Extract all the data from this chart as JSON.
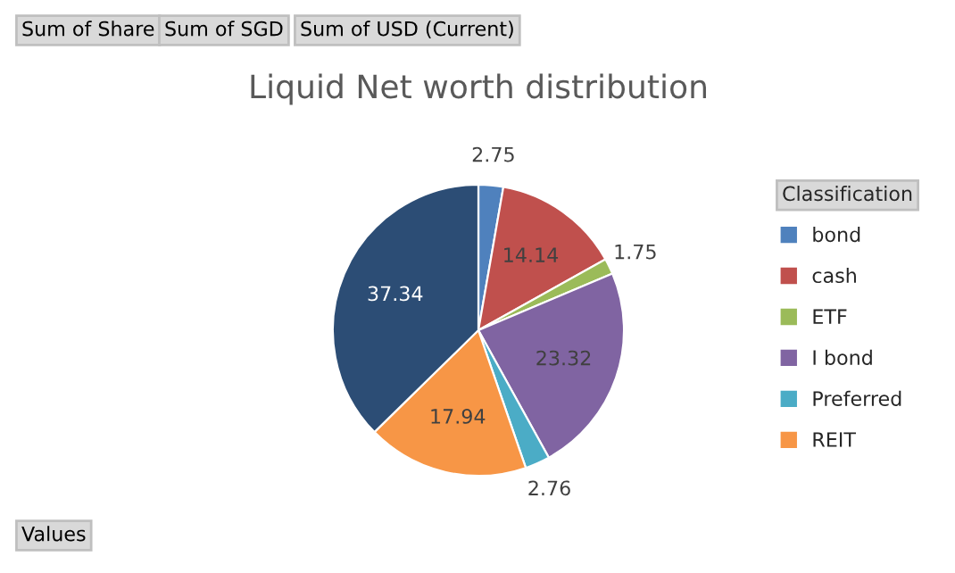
{
  "chart_data": {
    "type": "pie",
    "title": "Liquid Net worth distribution",
    "legend_title": "Classification",
    "legend": "right",
    "categories": [
      "bond",
      "cash",
      "ETF",
      "I bond",
      "Preferred",
      "REIT",
      null
    ],
    "values": [
      2.75,
      14.14,
      1.75,
      23.32,
      2.76,
      17.94,
      37.34
    ],
    "colors": [
      "#4f81bd",
      "#c0504d",
      "#9bbb59",
      "#8064a2",
      "#4bacc6",
      "#f79646",
      "#2c4d75"
    ],
    "data_labels": true,
    "annotations": [
      "Sum of Share",
      "Sum of SGD",
      "Sum of USD (Current)",
      "Values"
    ]
  }
}
